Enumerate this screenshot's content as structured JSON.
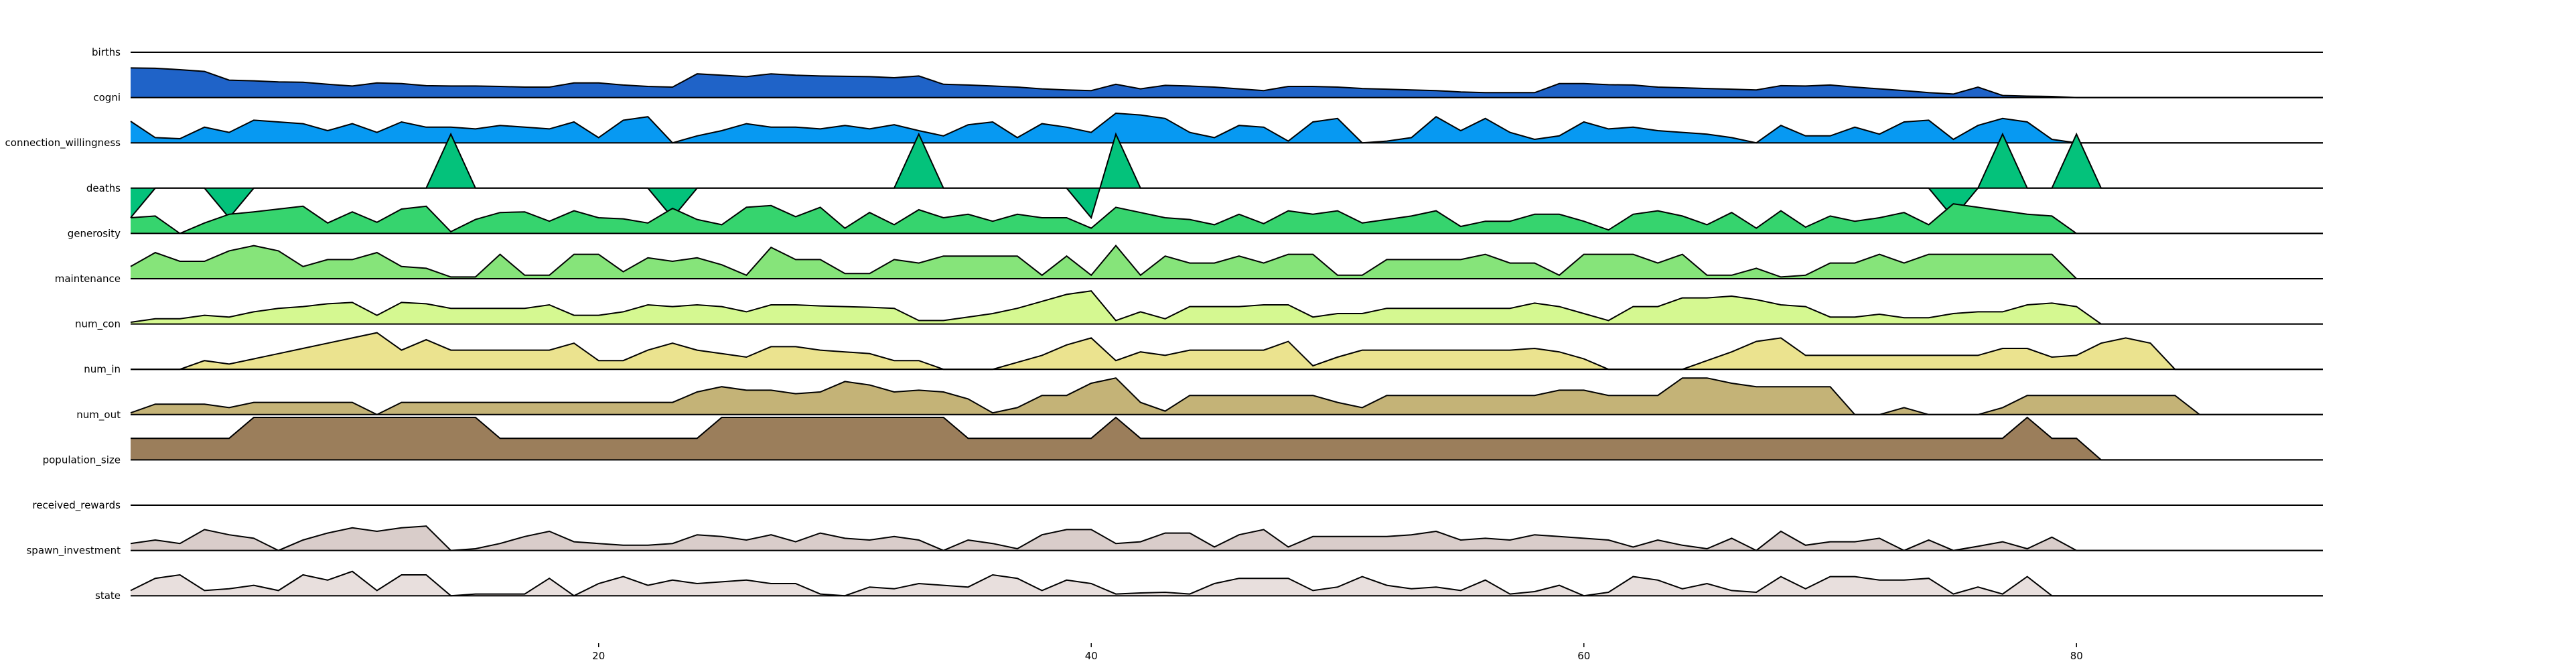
{
  "chart_data": {
    "type": "area",
    "subtype": "ridgeline",
    "x_range": [
      1,
      90
    ],
    "x_ticks": [
      "20",
      "40",
      "60",
      "80"
    ],
    "x_tick_values": [
      20,
      40,
      60,
      80
    ],
    "grid": false,
    "legend": "none",
    "series": [
      {
        "name": "births",
        "color": "#1f63c8",
        "values": [
          0.85,
          0.84,
          0.8,
          0.75,
          0.5,
          0.48,
          0.45,
          0.44,
          0.38,
          0.33,
          0.42,
          0.4,
          0.34,
          0.33,
          0.33,
          0.32,
          0.3,
          0.3,
          0.42,
          0.42,
          0.36,
          0.32,
          0.3,
          0.68,
          0.64,
          0.6,
          0.68,
          0.64,
          0.62,
          0.61,
          0.6,
          0.57,
          0.62,
          0.38,
          0.36,
          0.33,
          0.3,
          0.25,
          0.22,
          0.2,
          0.38,
          0.25,
          0.35,
          0.33,
          0.3,
          0.25,
          0.2,
          0.32,
          0.32,
          0.3,
          0.26,
          0.24,
          0.22,
          0.2,
          0.16,
          0.14,
          0.14,
          0.14,
          0.4,
          0.4,
          0.37,
          0.36,
          0.3,
          0.28,
          0.26,
          0.24,
          0.22,
          0.34,
          0.33,
          0.36,
          0.3,
          0.25,
          0.2,
          0.14,
          0.1,
          0.3,
          0.06,
          0.04,
          0.03,
          0.0,
          0.0,
          0.0,
          0.0,
          0.0,
          0.0,
          0.0,
          0.0,
          0.0,
          0.0,
          0.0
        ]
      },
      {
        "name": "cogni",
        "color": "#0799f2",
        "values": [
          0.62,
          0.15,
          0.12,
          0.45,
          0.3,
          0.65,
          0.6,
          0.55,
          0.35,
          0.55,
          0.3,
          0.6,
          0.45,
          0.45,
          0.4,
          0.5,
          0.45,
          0.4,
          0.6,
          0.15,
          0.65,
          0.75,
          0.0,
          0.2,
          0.35,
          0.55,
          0.45,
          0.45,
          0.4,
          0.5,
          0.4,
          0.52,
          0.35,
          0.2,
          0.52,
          0.6,
          0.15,
          0.55,
          0.45,
          0.3,
          0.85,
          0.8,
          0.7,
          0.3,
          0.15,
          0.5,
          0.45,
          0.05,
          0.6,
          0.7,
          0.0,
          0.05,
          0.15,
          0.75,
          0.35,
          0.7,
          0.3,
          0.1,
          0.2,
          0.6,
          0.4,
          0.45,
          0.35,
          0.3,
          0.25,
          0.15,
          0.0,
          0.5,
          0.2,
          0.2,
          0.45,
          0.25,
          0.6,
          0.65,
          0.1,
          0.5,
          0.7,
          0.6,
          0.1,
          0.0,
          0.0,
          0.0,
          0.0,
          0.0,
          0.0,
          0.0,
          0.0,
          0.0,
          0.0,
          0.0
        ]
      },
      {
        "name": "connection_willingness",
        "color": "#04c27b",
        "values": [
          -0.85,
          0.0,
          0.0,
          0.0,
          -0.85,
          0.0,
          0.0,
          0.0,
          0.0,
          0.0,
          0.0,
          0.0,
          0.0,
          1.55,
          0.0,
          0.0,
          0.0,
          0.0,
          0.0,
          0.0,
          0.0,
          0.0,
          -0.85,
          0.0,
          0.0,
          0.0,
          0.0,
          0.0,
          0.0,
          0.0,
          0.0,
          0.0,
          1.55,
          0.0,
          0.0,
          0.0,
          0.0,
          0.0,
          0.0,
          -0.85,
          1.55,
          0.0,
          0.0,
          0.0,
          0.0,
          0.0,
          0.0,
          0.0,
          0.0,
          0.0,
          0.0,
          0.0,
          0.0,
          0.0,
          0.0,
          0.0,
          0.0,
          0.0,
          0.0,
          0.0,
          0.0,
          0.0,
          0.0,
          0.0,
          0.0,
          0.0,
          0.0,
          0.0,
          0.0,
          0.0,
          0.0,
          0.0,
          0.0,
          0.0,
          -0.85,
          0.0,
          1.55,
          0.0,
          0.0,
          1.55,
          0.0,
          0.0,
          0.0,
          0.0,
          0.0,
          0.0,
          0.0,
          0.0,
          0.0,
          0.0
        ]
      },
      {
        "name": "deaths",
        "color": "#36d46e",
        "values": [
          0.45,
          0.5,
          0.0,
          0.3,
          0.55,
          0.62,
          0.7,
          0.78,
          0.3,
          0.62,
          0.32,
          0.7,
          0.78,
          0.05,
          0.4,
          0.6,
          0.62,
          0.35,
          0.65,
          0.45,
          0.42,
          0.3,
          0.72,
          0.4,
          0.25,
          0.75,
          0.8,
          0.48,
          0.75,
          0.15,
          0.6,
          0.25,
          0.68,
          0.45,
          0.55,
          0.35,
          0.55,
          0.45,
          0.45,
          0.15,
          0.75,
          0.6,
          0.45,
          0.4,
          0.25,
          0.55,
          0.28,
          0.65,
          0.55,
          0.65,
          0.3,
          0.4,
          0.5,
          0.65,
          0.2,
          0.35,
          0.35,
          0.55,
          0.55,
          0.35,
          0.1,
          0.55,
          0.65,
          0.5,
          0.25,
          0.6,
          0.15,
          0.65,
          0.18,
          0.5,
          0.35,
          0.45,
          0.6,
          0.25,
          0.85,
          0.75,
          0.65,
          0.55,
          0.5,
          0.0,
          0.0,
          0.0,
          0.0,
          0.0,
          0.0,
          0.0,
          0.0,
          0.0,
          0.0,
          0.0
        ]
      },
      {
        "name": "generosity",
        "color": "#86e47a",
        "values": [
          0.35,
          0.75,
          0.5,
          0.5,
          0.8,
          0.95,
          0.8,
          0.35,
          0.55,
          0.55,
          0.75,
          0.35,
          0.3,
          0.05,
          0.05,
          0.7,
          0.1,
          0.1,
          0.7,
          0.7,
          0.2,
          0.6,
          0.5,
          0.6,
          0.4,
          0.1,
          0.9,
          0.55,
          0.55,
          0.15,
          0.15,
          0.55,
          0.45,
          0.65,
          0.65,
          0.65,
          0.65,
          0.1,
          0.65,
          0.1,
          0.95,
          0.1,
          0.65,
          0.45,
          0.45,
          0.65,
          0.45,
          0.7,
          0.7,
          0.1,
          0.1,
          0.55,
          0.55,
          0.55,
          0.55,
          0.7,
          0.45,
          0.45,
          0.1,
          0.7,
          0.7,
          0.7,
          0.45,
          0.7,
          0.1,
          0.1,
          0.3,
          0.05,
          0.1,
          0.45,
          0.45,
          0.7,
          0.45,
          0.7,
          0.7,
          0.7,
          0.7,
          0.7,
          0.7,
          0.0,
          0.0,
          0.0,
          0.0,
          0.0,
          0.0,
          0.0,
          0.0,
          0.0,
          0.0,
          0.0
        ]
      },
      {
        "name": "maintenance",
        "color": "#d5f891",
        "values": [
          0.05,
          0.15,
          0.15,
          0.25,
          0.2,
          0.35,
          0.45,
          0.5,
          0.58,
          0.62,
          0.25,
          0.62,
          0.58,
          0.45,
          0.45,
          0.45,
          0.45,
          0.55,
          0.25,
          0.25,
          0.35,
          0.55,
          0.5,
          0.55,
          0.5,
          0.35,
          0.55,
          0.55,
          0.52,
          0.5,
          0.48,
          0.45,
          0.1,
          0.1,
          0.2,
          0.3,
          0.45,
          0.65,
          0.85,
          0.95,
          0.1,
          0.35,
          0.15,
          0.5,
          0.5,
          0.5,
          0.55,
          0.55,
          0.2,
          0.3,
          0.3,
          0.45,
          0.45,
          0.45,
          0.45,
          0.45,
          0.45,
          0.6,
          0.5,
          0.3,
          0.1,
          0.5,
          0.5,
          0.75,
          0.75,
          0.8,
          0.7,
          0.55,
          0.5,
          0.2,
          0.2,
          0.28,
          0.18,
          0.18,
          0.3,
          0.35,
          0.35,
          0.55,
          0.6,
          0.5,
          0.0,
          0.0,
          0.0,
          0.0,
          0.0,
          0.0,
          0.0,
          0.0,
          0.0,
          0.0
        ]
      },
      {
        "name": "num_con",
        "color": "#ebe38f",
        "values": [
          0.0,
          0.0,
          0.0,
          0.25,
          0.15,
          0.3,
          0.45,
          0.6,
          0.75,
          0.9,
          1.05,
          0.55,
          0.85,
          0.55,
          0.55,
          0.55,
          0.55,
          0.55,
          0.75,
          0.25,
          0.25,
          0.55,
          0.75,
          0.55,
          0.45,
          0.35,
          0.65,
          0.65,
          0.55,
          0.5,
          0.45,
          0.25,
          0.25,
          0.0,
          0.0,
          0.0,
          0.2,
          0.4,
          0.7,
          0.9,
          0.25,
          0.5,
          0.4,
          0.55,
          0.55,
          0.55,
          0.55,
          0.8,
          0.1,
          0.35,
          0.55,
          0.55,
          0.55,
          0.55,
          0.55,
          0.55,
          0.55,
          0.6,
          0.5,
          0.3,
          0.0,
          0.0,
          0.0,
          0.0,
          0.25,
          0.5,
          0.8,
          0.9,
          0.4,
          0.4,
          0.4,
          0.4,
          0.4,
          0.4,
          0.4,
          0.4,
          0.6,
          0.6,
          0.35,
          0.4,
          0.75,
          0.9,
          0.75,
          0.0,
          0.0,
          0.0,
          0.0,
          0.0,
          0.0,
          0.0
        ]
      },
      {
        "name": "num_in",
        "color": "#c4b377",
        "values": [
          0.05,
          0.3,
          0.3,
          0.3,
          0.2,
          0.35,
          0.35,
          0.35,
          0.35,
          0.35,
          0.0,
          0.35,
          0.35,
          0.35,
          0.35,
          0.35,
          0.35,
          0.35,
          0.35,
          0.35,
          0.35,
          0.35,
          0.35,
          0.65,
          0.8,
          0.7,
          0.7,
          0.6,
          0.65,
          0.95,
          0.85,
          0.65,
          0.7,
          0.65,
          0.45,
          0.05,
          0.2,
          0.55,
          0.55,
          0.9,
          1.05,
          0.35,
          0.1,
          0.55,
          0.55,
          0.55,
          0.55,
          0.55,
          0.55,
          0.35,
          0.2,
          0.55,
          0.55,
          0.55,
          0.55,
          0.55,
          0.55,
          0.55,
          0.7,
          0.7,
          0.55,
          0.55,
          0.55,
          1.05,
          1.05,
          0.9,
          0.8,
          0.8,
          0.8,
          0.8,
          0.0,
          0.0,
          0.2,
          0.0,
          0.0,
          0.0,
          0.2,
          0.55,
          0.55,
          0.55,
          0.55,
          0.55,
          0.55,
          0.55,
          0.0,
          0.0,
          0.0,
          0.0,
          0.0,
          0.0
        ]
      },
      {
        "name": "num_out",
        "color": "#9b7e5b",
        "values": [
          0.62,
          0.62,
          0.62,
          0.62,
          0.62,
          1.22,
          1.22,
          1.22,
          1.22,
          1.22,
          1.22,
          1.22,
          1.22,
          1.22,
          1.22,
          0.62,
          0.62,
          0.62,
          0.62,
          0.62,
          0.62,
          0.62,
          0.62,
          0.62,
          1.22,
          1.22,
          1.22,
          1.22,
          1.22,
          1.22,
          1.22,
          1.22,
          1.22,
          1.22,
          0.62,
          0.62,
          0.62,
          0.62,
          0.62,
          0.62,
          1.22,
          0.62,
          0.62,
          0.62,
          0.62,
          0.62,
          0.62,
          0.62,
          0.62,
          0.62,
          0.62,
          0.62,
          0.62,
          0.62,
          0.62,
          0.62,
          0.62,
          0.62,
          0.62,
          0.62,
          0.62,
          0.62,
          0.62,
          0.62,
          0.62,
          0.62,
          0.62,
          0.62,
          0.62,
          0.62,
          0.62,
          0.62,
          0.62,
          0.62,
          0.62,
          0.62,
          0.62,
          1.22,
          0.62,
          0.62,
          0.0,
          0.0,
          0.0,
          0.0,
          0.0,
          0.0,
          0.0,
          0.0,
          0.0,
          0.0
        ]
      },
      {
        "name": "population_size",
        "color": "#b09891",
        "values": [
          0.0,
          0.0,
          0.0,
          0.0,
          0.0,
          0.0,
          0.0,
          0.0,
          0.0,
          0.0,
          0.0,
          0.0,
          0.0,
          0.0,
          0.0,
          0.0,
          0.0,
          0.0,
          0.0,
          0.0,
          0.0,
          0.0,
          0.0,
          0.0,
          0.0,
          0.0,
          0.0,
          0.0,
          0.0,
          0.0,
          0.0,
          0.0,
          0.0,
          0.0,
          0.0,
          0.0,
          0.0,
          0.0,
          0.0,
          0.0,
          0.0,
          0.0,
          0.0,
          0.0,
          0.0,
          0.0,
          0.0,
          0.0,
          0.0,
          0.0,
          0.0,
          0.0,
          0.0,
          0.0,
          0.0,
          0.0,
          0.0,
          0.0,
          0.0,
          0.0,
          0.0,
          0.0,
          0.0,
          0.0,
          0.0,
          0.0,
          0.0,
          0.0,
          0.0,
          0.0,
          0.0,
          0.0,
          0.0,
          0.0,
          0.0,
          0.0,
          0.0,
          0.0,
          0.0,
          0.0,
          0.0,
          0.0,
          0.0,
          0.0,
          0.0,
          0.0,
          0.0,
          0.0,
          0.0,
          0.0
        ]
      },
      {
        "name": "received_rewards",
        "color": "#d9cdca",
        "values": [
          0.2,
          0.3,
          0.2,
          0.6,
          0.45,
          0.35,
          0.0,
          0.3,
          0.5,
          0.65,
          0.55,
          0.65,
          0.7,
          0.0,
          0.05,
          0.2,
          0.4,
          0.55,
          0.25,
          0.2,
          0.15,
          0.15,
          0.2,
          0.45,
          0.4,
          0.3,
          0.45,
          0.25,
          0.5,
          0.35,
          0.3,
          0.4,
          0.3,
          0.0,
          0.3,
          0.2,
          0.05,
          0.45,
          0.6,
          0.6,
          0.2,
          0.25,
          0.5,
          0.5,
          0.1,
          0.45,
          0.6,
          0.1,
          0.4,
          0.4,
          0.4,
          0.4,
          0.45,
          0.55,
          0.3,
          0.35,
          0.3,
          0.45,
          0.4,
          0.35,
          0.3,
          0.1,
          0.3,
          0.15,
          0.05,
          0.35,
          0.0,
          0.55,
          0.15,
          0.25,
          0.25,
          0.35,
          0.0,
          0.3,
          0.0,
          0.12,
          0.25,
          0.05,
          0.38,
          0.0,
          0.0,
          0.0,
          0.0,
          0.0,
          0.0,
          0.0,
          0.0,
          0.0,
          0.0,
          0.0
        ]
      },
      {
        "name": "spawn_investment",
        "color": "#e8dfdd",
        "values": [
          0.15,
          0.5,
          0.6,
          0.15,
          0.2,
          0.3,
          0.15,
          0.6,
          0.45,
          0.7,
          0.15,
          0.6,
          0.6,
          0.0,
          0.05,
          0.05,
          0.05,
          0.5,
          0.0,
          0.35,
          0.55,
          0.3,
          0.45,
          0.35,
          0.4,
          0.45,
          0.35,
          0.35,
          0.05,
          0.0,
          0.25,
          0.2,
          0.35,
          0.3,
          0.25,
          0.6,
          0.5,
          0.15,
          0.45,
          0.35,
          0.05,
          0.08,
          0.1,
          0.05,
          0.35,
          0.5,
          0.5,
          0.5,
          0.15,
          0.25,
          0.55,
          0.3,
          0.2,
          0.25,
          0.15,
          0.45,
          0.05,
          0.12,
          0.3,
          0.0,
          0.1,
          0.55,
          0.45,
          0.2,
          0.35,
          0.15,
          0.1,
          0.55,
          0.2,
          0.55,
          0.55,
          0.45,
          0.45,
          0.5,
          0.05,
          0.25,
          0.05,
          0.55,
          0.0,
          0.0,
          0.0,
          0.0,
          0.0,
          0.0,
          0.0,
          0.0,
          0.0,
          0.0,
          0.0,
          0.0
        ]
      },
      {
        "name": "state",
        "color": "#ffffff",
        "values": []
      }
    ]
  }
}
